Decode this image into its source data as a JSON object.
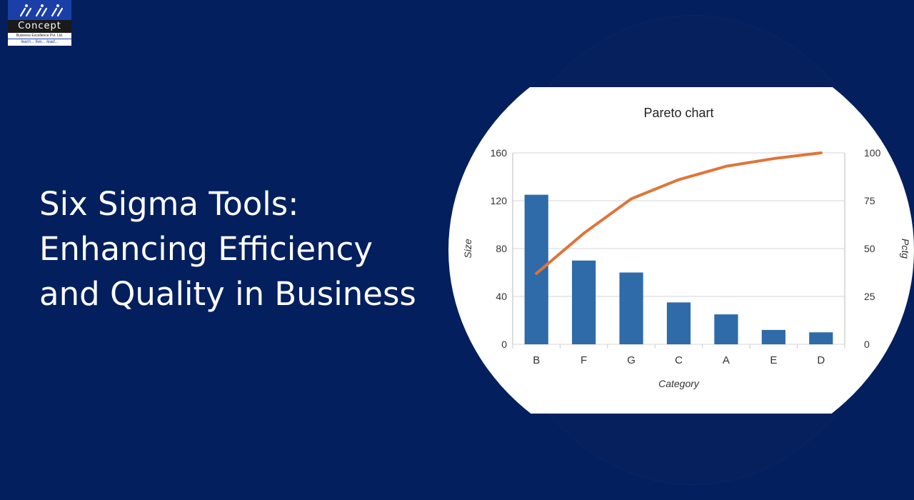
{
  "logo": {
    "name": "Concept",
    "subtitle": "Business Excellence Pvt. Ltd.",
    "tagline": "learn... live... lead..."
  },
  "headline": {
    "line1": "Six Sigma Tools:",
    "line2": "Enhancing Efficiency",
    "line3": "and Quality in Business"
  },
  "colors": {
    "background": "#031f5e",
    "bar": "#2e6ba8",
    "line": "#e0743a",
    "text": "#ffffff"
  },
  "chart_data": {
    "type": "bar",
    "title": "Pareto chart",
    "xlabel": "Category",
    "ylabel": "Size",
    "y2label": "Pctg",
    "categories": [
      "B",
      "F",
      "G",
      "C",
      "A",
      "E",
      "D"
    ],
    "series": [
      {
        "type": "bar",
        "axis": "left",
        "values": [
          125,
          70,
          60,
          35,
          25,
          12,
          10
        ]
      },
      {
        "type": "line",
        "axis": "right",
        "values": [
          37,
          58,
          76,
          86,
          93,
          97,
          100
        ]
      }
    ],
    "ylim": [
      0,
      160
    ],
    "yticks": [
      0,
      40,
      80,
      120,
      160
    ],
    "y2lim": [
      0,
      100
    ],
    "y2ticks": [
      0,
      25,
      50,
      75,
      100
    ],
    "grid": true
  }
}
